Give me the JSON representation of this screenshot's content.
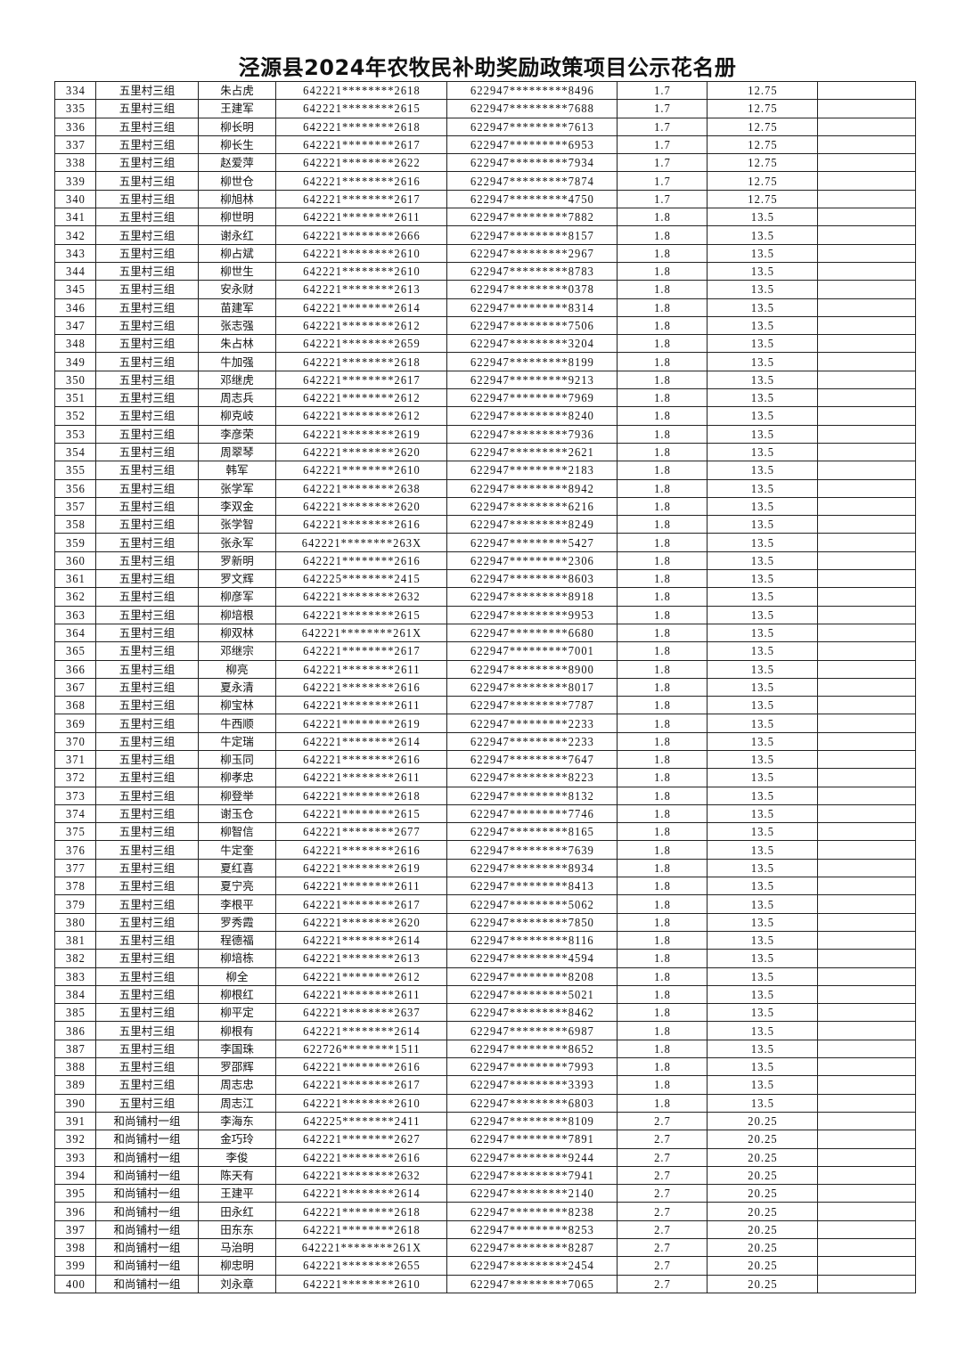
{
  "title": "泾源县2024年农牧民补助奖励政策项目公示花名册",
  "rows": [
    [
      "334",
      "五里村三组",
      "朱占虎",
      "642221********2618",
      "622947*********8496",
      "1.7",
      "12.75",
      ""
    ],
    [
      "335",
      "五里村三组",
      "王建军",
      "642221********2615",
      "622947*********7688",
      "1.7",
      "12.75",
      ""
    ],
    [
      "336",
      "五里村三组",
      "柳长明",
      "642221********2618",
      "622947*********7613",
      "1.7",
      "12.75",
      ""
    ],
    [
      "337",
      "五里村三组",
      "柳长生",
      "642221********2617",
      "622947*********6953",
      "1.7",
      "12.75",
      ""
    ],
    [
      "338",
      "五里村三组",
      "赵爱萍",
      "642221********2622",
      "622947*********7934",
      "1.7",
      "12.75",
      ""
    ],
    [
      "339",
      "五里村三组",
      "柳世仓",
      "642221********2616",
      "622947*********7874",
      "1.7",
      "12.75",
      ""
    ],
    [
      "340",
      "五里村三组",
      "柳旭林",
      "642221********2617",
      "622947*********4750",
      "1.7",
      "12.75",
      ""
    ],
    [
      "341",
      "五里村三组",
      "柳世明",
      "642221********2611",
      "622947*********7882",
      "1.8",
      "13.5",
      ""
    ],
    [
      "342",
      "五里村三组",
      "谢永红",
      "642221********2666",
      "622947*********8157",
      "1.8",
      "13.5",
      ""
    ],
    [
      "343",
      "五里村三组",
      "柳占斌",
      "642221********2610",
      "622947*********2967",
      "1.8",
      "13.5",
      ""
    ],
    [
      "344",
      "五里村三组",
      "柳世生",
      "642221********2610",
      "622947*********8783",
      "1.8",
      "13.5",
      ""
    ],
    [
      "345",
      "五里村三组",
      "安永财",
      "642221********2613",
      "622947*********0378",
      "1.8",
      "13.5",
      ""
    ],
    [
      "346",
      "五里村三组",
      "苗建军",
      "642221********2614",
      "622947*********8314",
      "1.8",
      "13.5",
      ""
    ],
    [
      "347",
      "五里村三组",
      "张志强",
      "642221********2612",
      "622947*********7506",
      "1.8",
      "13.5",
      ""
    ],
    [
      "348",
      "五里村三组",
      "朱占林",
      "642221********2659",
      "622947*********3204",
      "1.8",
      "13.5",
      ""
    ],
    [
      "349",
      "五里村三组",
      "牛加强",
      "642221********2618",
      "622947*********8199",
      "1.8",
      "13.5",
      ""
    ],
    [
      "350",
      "五里村三组",
      "邓继虎",
      "642221********2617",
      "622947*********9213",
      "1.8",
      "13.5",
      ""
    ],
    [
      "351",
      "五里村三组",
      "周志兵",
      "642221********2612",
      "622947*********7969",
      "1.8",
      "13.5",
      ""
    ],
    [
      "352",
      "五里村三组",
      "柳克岐",
      "642221********2612",
      "622947*********8240",
      "1.8",
      "13.5",
      ""
    ],
    [
      "353",
      "五里村三组",
      "李彦荣",
      "642221********2619",
      "622947*********7936",
      "1.8",
      "13.5",
      ""
    ],
    [
      "354",
      "五里村三组",
      "周翠琴",
      "642221********2620",
      "622947*********2621",
      "1.8",
      "13.5",
      ""
    ],
    [
      "355",
      "五里村三组",
      "韩军",
      "642221********2610",
      "622947*********2183",
      "1.8",
      "13.5",
      ""
    ],
    [
      "356",
      "五里村三组",
      "张学军",
      "642221********2638",
      "622947*********8942",
      "1.8",
      "13.5",
      ""
    ],
    [
      "357",
      "五里村三组",
      "李双金",
      "642221********2620",
      "622947*********6216",
      "1.8",
      "13.5",
      ""
    ],
    [
      "358",
      "五里村三组",
      "张学智",
      "642221********2616",
      "622947*********8249",
      "1.8",
      "13.5",
      ""
    ],
    [
      "359",
      "五里村三组",
      "张永军",
      "642221********263X",
      "622947*********5427",
      "1.8",
      "13.5",
      ""
    ],
    [
      "360",
      "五里村三组",
      "罗新明",
      "642221********2616",
      "622947*********2306",
      "1.8",
      "13.5",
      ""
    ],
    [
      "361",
      "五里村三组",
      "罗文辉",
      "642225********2415",
      "622947*********8603",
      "1.8",
      "13.5",
      ""
    ],
    [
      "362",
      "五里村三组",
      "柳彦军",
      "642221********2632",
      "622947*********8918",
      "1.8",
      "13.5",
      ""
    ],
    [
      "363",
      "五里村三组",
      "柳培根",
      "642221********2615",
      "622947*********9953",
      "1.8",
      "13.5",
      ""
    ],
    [
      "364",
      "五里村三组",
      "柳双林",
      "642221********261X",
      "622947*********6680",
      "1.8",
      "13.5",
      ""
    ],
    [
      "365",
      "五里村三组",
      "邓继宗",
      "642221********2617",
      "622947*********7001",
      "1.8",
      "13.5",
      ""
    ],
    [
      "366",
      "五里村三组",
      "柳亮",
      "642221********2611",
      "622947*********8900",
      "1.8",
      "13.5",
      ""
    ],
    [
      "367",
      "五里村三组",
      "夏永清",
      "642221********2616",
      "622947*********8017",
      "1.8",
      "13.5",
      ""
    ],
    [
      "368",
      "五里村三组",
      "柳宝林",
      "642221********2611",
      "622947*********7787",
      "1.8",
      "13.5",
      ""
    ],
    [
      "369",
      "五里村三组",
      "牛西顺",
      "642221********2619",
      "622947*********2233",
      "1.8",
      "13.5",
      ""
    ],
    [
      "370",
      "五里村三组",
      "牛定瑞",
      "642221********2614",
      "622947*********2233",
      "1.8",
      "13.5",
      ""
    ],
    [
      "371",
      "五里村三组",
      "柳玉同",
      "642221********2616",
      "622947*********7647",
      "1.8",
      "13.5",
      ""
    ],
    [
      "372",
      "五里村三组",
      "柳孝忠",
      "642221********2611",
      "622947*********8223",
      "1.8",
      "13.5",
      ""
    ],
    [
      "373",
      "五里村三组",
      "柳登举",
      "642221********2618",
      "622947*********8132",
      "1.8",
      "13.5",
      ""
    ],
    [
      "374",
      "五里村三组",
      "谢玉仓",
      "642221********2615",
      "622947*********7746",
      "1.8",
      "13.5",
      ""
    ],
    [
      "375",
      "五里村三组",
      "柳智信",
      "642221********2677",
      "622947*********8165",
      "1.8",
      "13.5",
      ""
    ],
    [
      "376",
      "五里村三组",
      "牛定奎",
      "642221********2616",
      "622947*********7639",
      "1.8",
      "13.5",
      ""
    ],
    [
      "377",
      "五里村三组",
      "夏红喜",
      "642221********2619",
      "622947*********8934",
      "1.8",
      "13.5",
      ""
    ],
    [
      "378",
      "五里村三组",
      "夏宁亮",
      "642221********2611",
      "622947*********8413",
      "1.8",
      "13.5",
      ""
    ],
    [
      "379",
      "五里村三组",
      "李根平",
      "642221********2617",
      "622947*********5062",
      "1.8",
      "13.5",
      ""
    ],
    [
      "380",
      "五里村三组",
      "罗秀霞",
      "642221********2620",
      "622947*********7850",
      "1.8",
      "13.5",
      ""
    ],
    [
      "381",
      "五里村三组",
      "程德福",
      "642221********2614",
      "622947*********8116",
      "1.8",
      "13.5",
      ""
    ],
    [
      "382",
      "五里村三组",
      "柳培栋",
      "642221********2613",
      "622947*********4594",
      "1.8",
      "13.5",
      ""
    ],
    [
      "383",
      "五里村三组",
      "柳全",
      "642221********2612",
      "622947*********8208",
      "1.8",
      "13.5",
      ""
    ],
    [
      "384",
      "五里村三组",
      "柳根红",
      "642221********2611",
      "622947*********5021",
      "1.8",
      "13.5",
      ""
    ],
    [
      "385",
      "五里村三组",
      "柳平定",
      "642221********2637",
      "622947*********8462",
      "1.8",
      "13.5",
      ""
    ],
    [
      "386",
      "五里村三组",
      "柳根有",
      "642221********2614",
      "622947*********6987",
      "1.8",
      "13.5",
      ""
    ],
    [
      "387",
      "五里村三组",
      "李国珠",
      "622726********1511",
      "622947*********8652",
      "1.8",
      "13.5",
      ""
    ],
    [
      "388",
      "五里村三组",
      "罗邵辉",
      "642221********2616",
      "622947*********7993",
      "1.8",
      "13.5",
      ""
    ],
    [
      "389",
      "五里村三组",
      "周志忠",
      "642221********2617",
      "622947*********3393",
      "1.8",
      "13.5",
      ""
    ],
    [
      "390",
      "五里村三组",
      "周志江",
      "642221********2610",
      "622947*********6803",
      "1.8",
      "13.5",
      ""
    ],
    [
      "391",
      "和尚铺村一组",
      "李海东",
      "642225********2411",
      "622947*********8109",
      "2.7",
      "20.25",
      ""
    ],
    [
      "392",
      "和尚铺村一组",
      "金巧玲",
      "642221********2627",
      "622947*********7891",
      "2.7",
      "20.25",
      ""
    ],
    [
      "393",
      "和尚铺村一组",
      "李俊",
      "642221********2616",
      "622947*********9244",
      "2.7",
      "20.25",
      ""
    ],
    [
      "394",
      "和尚铺村一组",
      "陈天有",
      "642221********2632",
      "622947*********7941",
      "2.7",
      "20.25",
      ""
    ],
    [
      "395",
      "和尚铺村一组",
      "王建平",
      "642221********2614",
      "622947*********2140",
      "2.7",
      "20.25",
      ""
    ],
    [
      "396",
      "和尚铺村一组",
      "田永红",
      "642221********2618",
      "622947*********8238",
      "2.7",
      "20.25",
      ""
    ],
    [
      "397",
      "和尚铺村一组",
      "田东东",
      "642221********2618",
      "622947*********8253",
      "2.7",
      "20.25",
      ""
    ],
    [
      "398",
      "和尚铺村一组",
      "马治明",
      "642221********261X",
      "622947*********8287",
      "2.7",
      "20.25",
      ""
    ],
    [
      "399",
      "和尚铺村一组",
      "柳忠明",
      "642221********2655",
      "622947*********2454",
      "2.7",
      "20.25",
      ""
    ],
    [
      "400",
      "和尚铺村一组",
      "刘永章",
      "642221********2610",
      "622947*********7065",
      "2.7",
      "20.25",
      ""
    ]
  ]
}
